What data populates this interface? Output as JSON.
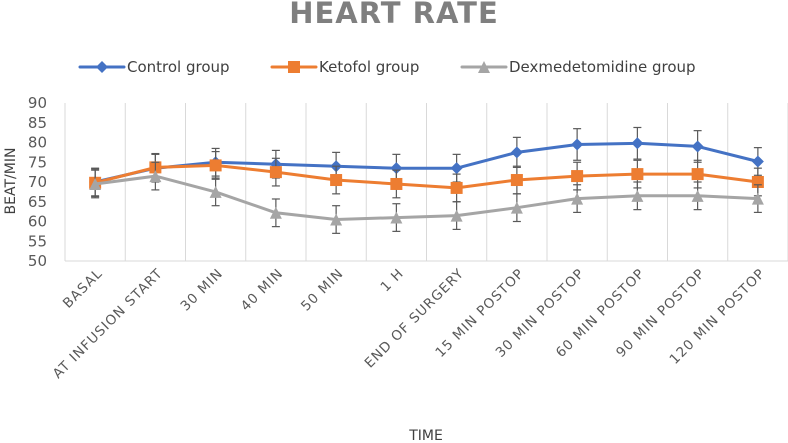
{
  "chart_data": {
    "type": "line",
    "title": "HEART RATE",
    "xlabel": "TIME",
    "ylabel": "BEAT/MIN",
    "ylim": [
      50,
      90
    ],
    "yticks": [
      50,
      55,
      60,
      65,
      70,
      75,
      80,
      85,
      90
    ],
    "grid": "vertical",
    "legend_position": "top",
    "categories": [
      "BASAL",
      "AT INFUSION START",
      "30 MIN",
      "40 MIN",
      "50 MIN",
      "1 H",
      "END OF SURGERY",
      "15 MIN POSTOP",
      "30 MIN POSTOP",
      "60 MIN POSTOP",
      "90 MIN POSTOP",
      "120 MIN POSTOP"
    ],
    "series": [
      {
        "name": "Control group",
        "color": "#4472c4",
        "marker": "diamond",
        "values": [
          70,
          73.5,
          75,
          74.5,
          74,
          73.5,
          73.5,
          77.5,
          79.5,
          79.8,
          79,
          75.2
        ],
        "error": [
          3.5,
          3.5,
          3.5,
          3.5,
          3.5,
          3.5,
          3.5,
          3.8,
          4,
          4,
          4,
          3.5
        ]
      },
      {
        "name": "Ketofol group",
        "color": "#ed7d31",
        "marker": "square",
        "values": [
          69.8,
          73.7,
          74.2,
          72.5,
          70.5,
          69.5,
          68.5,
          70.5,
          71.5,
          72,
          72,
          70
        ],
        "error": [
          3.5,
          3.5,
          3.5,
          3.5,
          3.5,
          3.5,
          3.5,
          3.5,
          3.5,
          3.5,
          3.5,
          3.5
        ]
      },
      {
        "name": "Dexmedetomidine group",
        "color": "#a5a5a5",
        "marker": "triangle",
        "values": [
          69.5,
          71.5,
          67.5,
          62.2,
          60.5,
          61,
          61.5,
          63.5,
          65.8,
          66.5,
          66.5,
          65.8
        ],
        "error": [
          3.5,
          3.5,
          3.5,
          3.5,
          3.5,
          3.5,
          3.5,
          3.5,
          3.5,
          3.5,
          3.5,
          3.5
        ]
      }
    ]
  }
}
